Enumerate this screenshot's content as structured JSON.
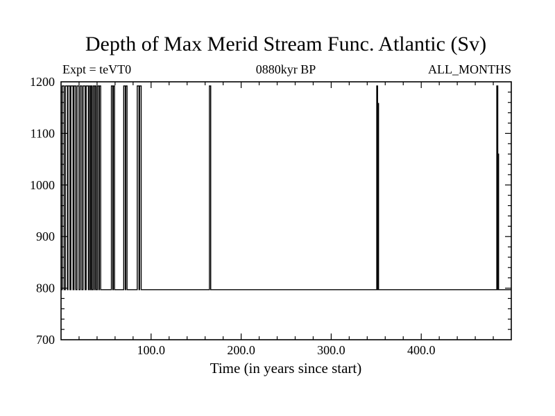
{
  "page": {
    "background_color": "#ffffff",
    "ink_color": "#000000"
  },
  "header": {
    "title": "Depth of Max Merid Stream Func. Atlantic (Sv)",
    "experiment_label": "Expt = teVT0",
    "epoch_label": "0880kyr BP",
    "months_label": "ALL_MONTHS"
  },
  "chart_data": {
    "type": "line",
    "title": "Depth of Max Merid Stream Func. Atlantic (Sv)",
    "xlabel": "Time (in years since start)",
    "ylabel": "",
    "xlim": [
      0,
      500
    ],
    "ylim": [
      700,
      1200
    ],
    "x_major_ticks": [
      100,
      200,
      300,
      400
    ],
    "x_major_tick_labels": [
      "100.0",
      "200.0",
      "300.0",
      "400.0"
    ],
    "x_minor_tick_step": 20,
    "y_major_ticks": [
      700,
      800,
      900,
      1000,
      1100,
      1200
    ],
    "y_major_tick_labels": [
      "700",
      "800",
      "900",
      "1000",
      "1100",
      "1200"
    ],
    "y_minor_tick_step": 20,
    "grid": false,
    "ticks_on_all_sides": true,
    "legend": "none",
    "line_color": "#000000",
    "baseline_value": 797,
    "series": [
      {
        "name": "depth-of-max-meridional-streamfunction",
        "description": "Baseline near 797 m with abrupt square pulses to ~1190 m; pulses listed as [start_year, end_year, peak_value]",
        "pulses": [
          [
            1.3,
            3.4,
            1192
          ],
          [
            4.8,
            7.1,
            1192
          ],
          [
            7.7,
            9.9,
            1192
          ],
          [
            10.9,
            13.3,
            1192
          ],
          [
            14.4,
            16.4,
            1192
          ],
          [
            17.8,
            19.9,
            1192
          ],
          [
            21.3,
            23.1,
            1192
          ],
          [
            24.5,
            26.7,
            1192
          ],
          [
            27.9,
            30.3,
            1192
          ],
          [
            31.5,
            32.8,
            1192
          ],
          [
            33.2,
            34.4,
            1192
          ],
          [
            35.8,
            37.3,
            1192
          ],
          [
            37.7,
            39.0,
            1192
          ],
          [
            40.4,
            42.0,
            1192
          ],
          [
            42.5,
            44.0,
            1192
          ],
          [
            55.9,
            57.5,
            1192
          ],
          [
            58.0,
            59.4,
            1192
          ],
          [
            69.6,
            71.3,
            1192
          ],
          [
            71.8,
            73.3,
            1192
          ],
          [
            84.6,
            86.6,
            1192
          ],
          [
            87.2,
            89.0,
            1192
          ],
          [
            164.8,
            166.2,
            1192
          ],
          [
            350.6,
            351.5,
            1192
          ],
          [
            351.8,
            352.6,
            1158
          ],
          [
            483.9,
            485.0,
            1192
          ],
          [
            485.2,
            485.9,
            1060
          ]
        ]
      }
    ]
  }
}
